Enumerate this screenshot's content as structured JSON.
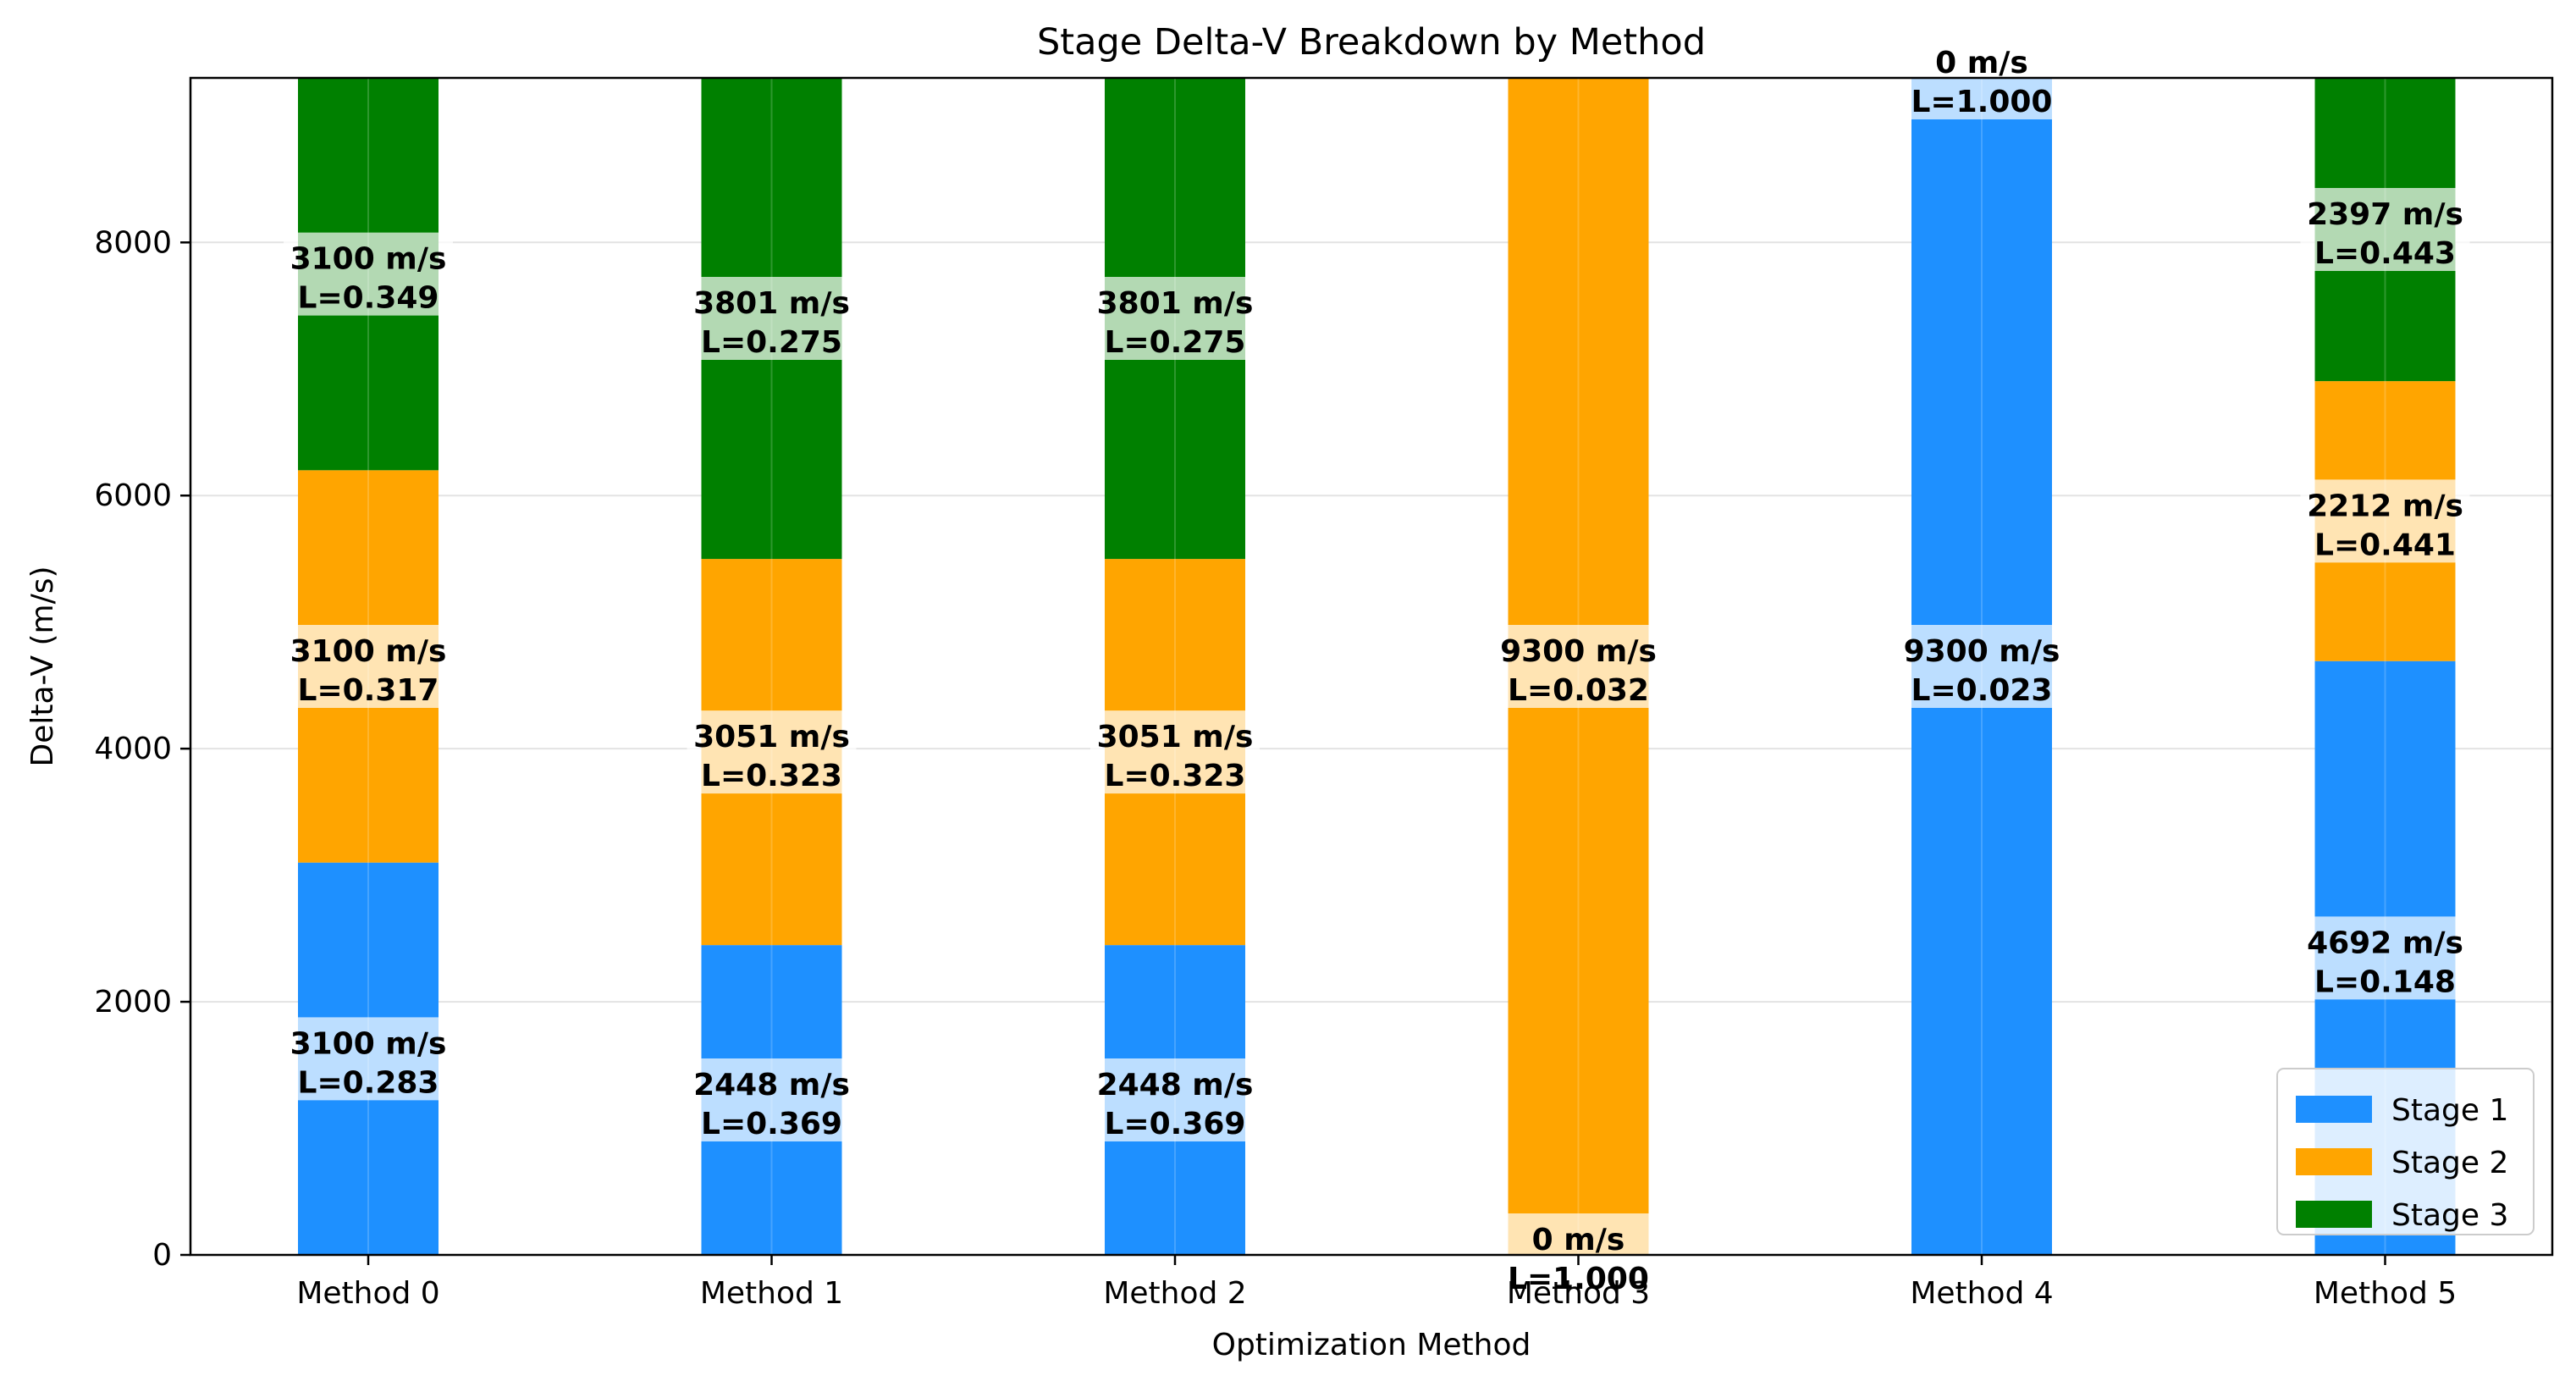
{
  "chart_data": {
    "type": "bar",
    "stacked": true,
    "title": "Stage Delta-V Breakdown by Method",
    "xlabel": "Optimization Method",
    "ylabel": "Delta-V (m/s)",
    "ylim": [
      0,
      9300
    ],
    "yticks": [
      0,
      2000,
      4000,
      6000,
      8000
    ],
    "grid": "horizontal",
    "legend_position": "lower-right",
    "categories": [
      "Method 0",
      "Method 1",
      "Method 2",
      "Method 3",
      "Method 4",
      "Method 5"
    ],
    "series": [
      {
        "name": "Stage 1",
        "color": "#1e90ff",
        "values": [
          3100,
          2448,
          2448,
          0,
          9300,
          4692
        ],
        "labels": [
          {
            "dv": "3100 m/s",
            "l": "L=0.283"
          },
          {
            "dv": "2448 m/s",
            "l": "L=0.369"
          },
          {
            "dv": "2448 m/s",
            "l": "L=0.369"
          },
          {
            "dv": "0 m/s",
            "l": "L=1.000"
          },
          {
            "dv": "9300 m/s",
            "l": "L=0.023"
          },
          {
            "dv": "4692 m/s",
            "l": "L=0.148"
          }
        ]
      },
      {
        "name": "Stage 2",
        "color": "#ffa500",
        "values": [
          3100,
          3051,
          3051,
          9300,
          0,
          2212
        ],
        "labels": [
          {
            "dv": "3100 m/s",
            "l": "L=0.317"
          },
          {
            "dv": "3051 m/s",
            "l": "L=0.323"
          },
          {
            "dv": "3051 m/s",
            "l": "L=0.323"
          },
          {
            "dv": "9300 m/s",
            "l": "L=0.032"
          },
          {
            "dv": "0 m/s",
            "l": "L=1.000"
          },
          {
            "dv": "2212 m/s",
            "l": "L=0.441"
          }
        ]
      },
      {
        "name": "Stage 3",
        "color": "#008000",
        "values": [
          3100,
          3801,
          3801,
          0,
          0,
          2397
        ],
        "labels": [
          {
            "dv": "3100 m/s",
            "l": "L=0.349"
          },
          {
            "dv": "3801 m/s",
            "l": "L=0.275"
          },
          {
            "dv": "3801 m/s",
            "l": "L=0.275"
          },
          null,
          null,
          {
            "dv": "2397 m/s",
            "l": "L=0.443"
          }
        ]
      }
    ]
  }
}
